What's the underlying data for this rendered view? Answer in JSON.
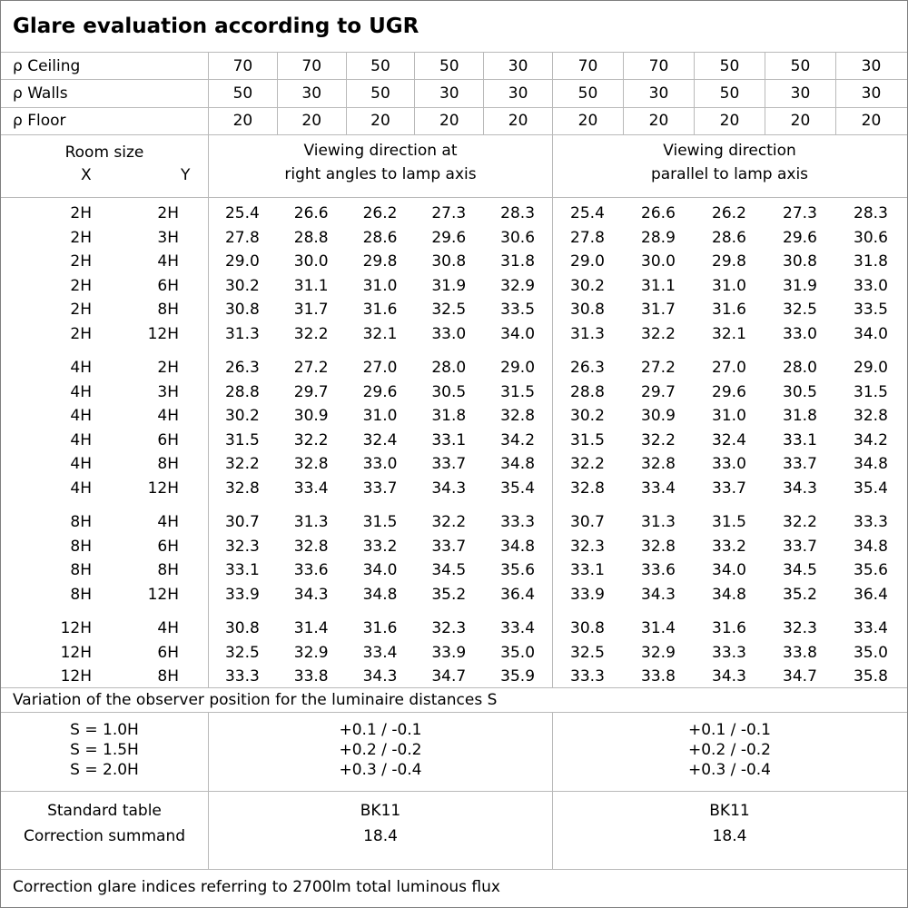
{
  "title": "Glare evaluation according to UGR",
  "colors": {
    "background": "#ffffff",
    "grid_line": "#b9b9b9",
    "outer_border": "#7f7f7f",
    "text": "#000000"
  },
  "header": {
    "rho_rows": [
      {
        "label": "ρ Ceiling",
        "values": [
          "70",
          "70",
          "50",
          "50",
          "30",
          "70",
          "70",
          "50",
          "50",
          "30"
        ]
      },
      {
        "label": "ρ Walls",
        "values": [
          "50",
          "30",
          "50",
          "30",
          "30",
          "50",
          "30",
          "50",
          "30",
          "30"
        ]
      },
      {
        "label": "ρ Floor",
        "values": [
          "20",
          "20",
          "20",
          "20",
          "20",
          "20",
          "20",
          "20",
          "20",
          "20"
        ]
      }
    ],
    "room_size_label": "Room size",
    "x_label": "X",
    "y_label": "Y",
    "viewing_right_angles": {
      "line1": "Viewing direction at",
      "line2": "right angles to lamp axis"
    },
    "viewing_parallel": {
      "line1": "Viewing direction",
      "line2": "parallel to lamp axis"
    }
  },
  "groups": [
    {
      "rows": [
        {
          "x": "2H",
          "y": "2H",
          "right_angles": [
            "25.4",
            "26.6",
            "26.2",
            "27.3",
            "28.3"
          ],
          "parallel": [
            "25.4",
            "26.6",
            "26.2",
            "27.3",
            "28.3"
          ]
        },
        {
          "x": "2H",
          "y": "3H",
          "right_angles": [
            "27.8",
            "28.8",
            "28.6",
            "29.6",
            "30.6"
          ],
          "parallel": [
            "27.8",
            "28.9",
            "28.6",
            "29.6",
            "30.6"
          ]
        },
        {
          "x": "2H",
          "y": "4H",
          "right_angles": [
            "29.0",
            "30.0",
            "29.8",
            "30.8",
            "31.8"
          ],
          "parallel": [
            "29.0",
            "30.0",
            "29.8",
            "30.8",
            "31.8"
          ]
        },
        {
          "x": "2H",
          "y": "6H",
          "right_angles": [
            "30.2",
            "31.1",
            "31.0",
            "31.9",
            "32.9"
          ],
          "parallel": [
            "30.2",
            "31.1",
            "31.0",
            "31.9",
            "33.0"
          ]
        },
        {
          "x": "2H",
          "y": "8H",
          "right_angles": [
            "30.8",
            "31.7",
            "31.6",
            "32.5",
            "33.5"
          ],
          "parallel": [
            "30.8",
            "31.7",
            "31.6",
            "32.5",
            "33.5"
          ]
        },
        {
          "x": "2H",
          "y": "12H",
          "right_angles": [
            "31.3",
            "32.2",
            "32.1",
            "33.0",
            "34.0"
          ],
          "parallel": [
            "31.3",
            "32.2",
            "32.1",
            "33.0",
            "34.0"
          ]
        }
      ]
    },
    {
      "rows": [
        {
          "x": "4H",
          "y": "2H",
          "right_angles": [
            "26.3",
            "27.2",
            "27.0",
            "28.0",
            "29.0"
          ],
          "parallel": [
            "26.3",
            "27.2",
            "27.0",
            "28.0",
            "29.0"
          ]
        },
        {
          "x": "4H",
          "y": "3H",
          "right_angles": [
            "28.8",
            "29.7",
            "29.6",
            "30.5",
            "31.5"
          ],
          "parallel": [
            "28.8",
            "29.7",
            "29.6",
            "30.5",
            "31.5"
          ]
        },
        {
          "x": "4H",
          "y": "4H",
          "right_angles": [
            "30.2",
            "30.9",
            "31.0",
            "31.8",
            "32.8"
          ],
          "parallel": [
            "30.2",
            "30.9",
            "31.0",
            "31.8",
            "32.8"
          ]
        },
        {
          "x": "4H",
          "y": "6H",
          "right_angles": [
            "31.5",
            "32.2",
            "32.4",
            "33.1",
            "34.2"
          ],
          "parallel": [
            "31.5",
            "32.2",
            "32.4",
            "33.1",
            "34.2"
          ]
        },
        {
          "x": "4H",
          "y": "8H",
          "right_angles": [
            "32.2",
            "32.8",
            "33.0",
            "33.7",
            "34.8"
          ],
          "parallel": [
            "32.2",
            "32.8",
            "33.0",
            "33.7",
            "34.8"
          ]
        },
        {
          "x": "4H",
          "y": "12H",
          "right_angles": [
            "32.8",
            "33.4",
            "33.7",
            "34.3",
            "35.4"
          ],
          "parallel": [
            "32.8",
            "33.4",
            "33.7",
            "34.3",
            "35.4"
          ]
        }
      ]
    },
    {
      "rows": [
        {
          "x": "8H",
          "y": "4H",
          "right_angles": [
            "30.7",
            "31.3",
            "31.5",
            "32.2",
            "33.3"
          ],
          "parallel": [
            "30.7",
            "31.3",
            "31.5",
            "32.2",
            "33.3"
          ]
        },
        {
          "x": "8H",
          "y": "6H",
          "right_angles": [
            "32.3",
            "32.8",
            "33.2",
            "33.7",
            "34.8"
          ],
          "parallel": [
            "32.3",
            "32.8",
            "33.2",
            "33.7",
            "34.8"
          ]
        },
        {
          "x": "8H",
          "y": "8H",
          "right_angles": [
            "33.1",
            "33.6",
            "34.0",
            "34.5",
            "35.6"
          ],
          "parallel": [
            "33.1",
            "33.6",
            "34.0",
            "34.5",
            "35.6"
          ]
        },
        {
          "x": "8H",
          "y": "12H",
          "right_angles": [
            "33.9",
            "34.3",
            "34.8",
            "35.2",
            "36.4"
          ],
          "parallel": [
            "33.9",
            "34.3",
            "34.8",
            "35.2",
            "36.4"
          ]
        }
      ]
    },
    {
      "rows": [
        {
          "x": "12H",
          "y": "4H",
          "right_angles": [
            "30.8",
            "31.4",
            "31.6",
            "32.3",
            "33.4"
          ],
          "parallel": [
            "30.8",
            "31.4",
            "31.6",
            "32.3",
            "33.4"
          ]
        },
        {
          "x": "12H",
          "y": "6H",
          "right_angles": [
            "32.5",
            "32.9",
            "33.4",
            "33.9",
            "35.0"
          ],
          "parallel": [
            "32.5",
            "32.9",
            "33.3",
            "33.8",
            "35.0"
          ]
        },
        {
          "x": "12H",
          "y": "8H",
          "right_angles": [
            "33.3",
            "33.8",
            "34.3",
            "34.7",
            "35.9"
          ],
          "parallel": [
            "33.3",
            "33.8",
            "34.3",
            "34.7",
            "35.8"
          ]
        }
      ]
    }
  ],
  "variation": {
    "title": "Variation of the observer position for the luminaire distances S",
    "s_rows": [
      {
        "label": "S = 1.0H",
        "right_angles": "+0.1 / -0.1",
        "parallel": "+0.1 / -0.1"
      },
      {
        "label": "S = 1.5H",
        "right_angles": "+0.2 / -0.2",
        "parallel": "+0.2 / -0.2"
      },
      {
        "label": "S = 2.0H",
        "right_angles": "+0.3 / -0.4",
        "parallel": "+0.3 / -0.4"
      }
    ]
  },
  "summary": {
    "rows": [
      {
        "label": "Standard table",
        "right_angles": "BK11",
        "parallel": "BK11"
      },
      {
        "label": "Correction summand",
        "right_angles": "18.4",
        "parallel": "18.4"
      }
    ]
  },
  "footer": "Correction glare indices referring to 2700lm total luminous flux"
}
